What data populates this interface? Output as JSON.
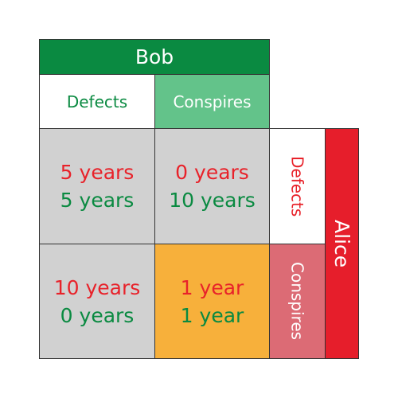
{
  "bob": {
    "label": "Bob",
    "columns": [
      "Defects",
      "Conspires"
    ]
  },
  "alice": {
    "label": "Alice",
    "rows": [
      "Defects",
      "Conspires"
    ]
  },
  "colors": {
    "alice_text": "#e8222a",
    "bob_text": "#0a8a41",
    "bob_header": "#0a8a41",
    "bob_conspires": "#63c38a",
    "alice_header": "#e61e2b",
    "alice_conspires": "#dc6b75",
    "neutral_cell": "#d1d1d1",
    "highlight_cell": "#f7b03b"
  },
  "cells": [
    [
      {
        "alice": "5 years",
        "bob": "5 years"
      },
      {
        "alice": "0 years",
        "bob": "10 years"
      }
    ],
    [
      {
        "alice": "10 years",
        "bob": "0 years"
      },
      {
        "alice": "1 year",
        "bob": "1 year"
      }
    ]
  ]
}
